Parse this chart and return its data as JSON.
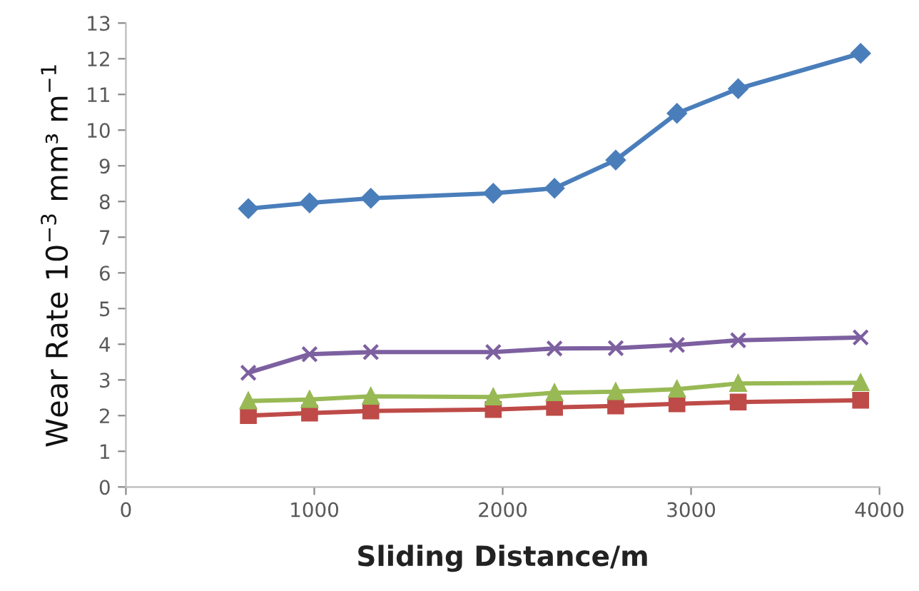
{
  "chart_data": {
    "type": "line",
    "xlabel": "Sliding Distance/m",
    "ylabel": "Wear Rate 10$^{−3}$ mm³ m$^{−1}$",
    "x": [
      650,
      975,
      1300,
      1950,
      2275,
      2600,
      2925,
      3250,
      3900
    ],
    "series": [
      {
        "color": "#4a7ebb",
        "marker": "diamond",
        "values": [
          7.8,
          7.96,
          8.09,
          8.23,
          8.37,
          9.16,
          10.47,
          11.16,
          12.15
        ]
      },
      {
        "color": "#be4b48",
        "marker": "square",
        "values": [
          2.0,
          2.07,
          2.13,
          2.17,
          2.23,
          2.27,
          2.33,
          2.38,
          2.43
        ]
      },
      {
        "color": "#98b954",
        "marker": "triangle",
        "values": [
          2.41,
          2.45,
          2.54,
          2.52,
          2.64,
          2.67,
          2.74,
          2.9,
          2.92
        ]
      },
      {
        "color": "#7d60a0",
        "marker": "cross",
        "values": [
          3.2,
          3.72,
          3.78,
          3.78,
          3.88,
          3.89,
          3.98,
          4.11,
          4.19
        ]
      }
    ],
    "xlim": [
      0,
      4000
    ],
    "xticks": [
      0,
      1000,
      2000,
      3000,
      4000
    ],
    "ylim": [
      0,
      13
    ],
    "yticks": [
      0,
      1,
      2,
      3,
      4,
      5,
      6,
      7,
      8,
      9,
      10,
      11,
      12,
      13
    ],
    "grid": false,
    "line_style": "solid"
  }
}
